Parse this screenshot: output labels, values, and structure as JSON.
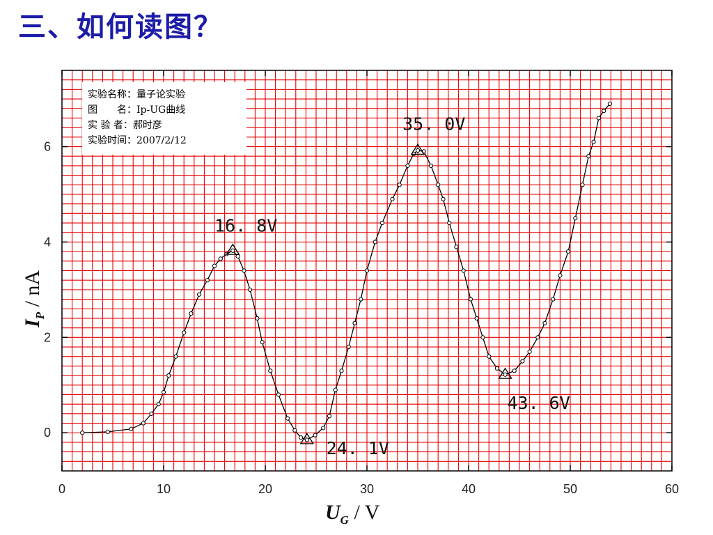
{
  "slide": {
    "title": "三、如何读图？"
  },
  "chart_data": {
    "type": "line",
    "grid": true,
    "grid_color": "#e60000",
    "line_color": "#000000",
    "title_color": "#1c1ca8",
    "xlabel": {
      "symbol": "U",
      "subscript": "G",
      "unit": "/ V"
    },
    "ylabel": {
      "symbol": "I",
      "subscript": "P",
      "unit": "/ nA"
    },
    "xlim": [
      0,
      60
    ],
    "ylim": [
      -0.8,
      7.6
    ],
    "xticks": [
      0,
      10,
      20,
      30,
      40,
      50,
      60
    ],
    "yticks": [
      0,
      2,
      4,
      6
    ],
    "info_box": {
      "lines": [
        "实验名称：量子论实验",
        "图　　名：Ip-UG曲线",
        "实 验 者：郝时彦",
        "实验时间：2007/2/12"
      ]
    },
    "series": [
      {
        "points": [
          [
            2.0,
            0.0
          ],
          [
            4.5,
            0.02
          ],
          [
            6.8,
            0.08
          ],
          [
            8.0,
            0.2
          ],
          [
            8.8,
            0.4
          ],
          [
            9.5,
            0.6
          ],
          [
            10.0,
            0.85
          ],
          [
            10.5,
            1.2
          ],
          [
            11.2,
            1.6
          ],
          [
            12.0,
            2.1
          ],
          [
            12.7,
            2.5
          ],
          [
            13.5,
            2.9
          ],
          [
            14.3,
            3.2
          ],
          [
            15.0,
            3.5
          ],
          [
            15.6,
            3.65
          ],
          [
            16.2,
            3.75
          ],
          [
            16.8,
            3.82
          ],
          [
            17.3,
            3.7
          ],
          [
            17.9,
            3.4
          ],
          [
            18.5,
            3.0
          ],
          [
            19.2,
            2.4
          ],
          [
            19.7,
            1.9
          ],
          [
            20.5,
            1.3
          ],
          [
            21.3,
            0.8
          ],
          [
            22.2,
            0.3
          ],
          [
            22.9,
            0.05
          ],
          [
            23.5,
            -0.1
          ],
          [
            24.1,
            -0.15
          ],
          [
            24.9,
            -0.05
          ],
          [
            25.7,
            0.1
          ],
          [
            26.3,
            0.35
          ],
          [
            26.9,
            0.9
          ],
          [
            27.5,
            1.3
          ],
          [
            28.2,
            1.8
          ],
          [
            28.8,
            2.3
          ],
          [
            29.4,
            2.8
          ],
          [
            30.0,
            3.4
          ],
          [
            30.8,
            4.0
          ],
          [
            31.5,
            4.4
          ],
          [
            32.5,
            4.9
          ],
          [
            33.2,
            5.2
          ],
          [
            34.0,
            5.6
          ],
          [
            34.6,
            5.85
          ],
          [
            35.0,
            5.92
          ],
          [
            35.6,
            5.9
          ],
          [
            36.3,
            5.6
          ],
          [
            37.0,
            5.2
          ],
          [
            37.5,
            4.9
          ],
          [
            38.1,
            4.4
          ],
          [
            38.8,
            3.9
          ],
          [
            39.5,
            3.4
          ],
          [
            40.2,
            2.8
          ],
          [
            40.8,
            2.4
          ],
          [
            41.4,
            2.0
          ],
          [
            42.0,
            1.6
          ],
          [
            42.8,
            1.35
          ],
          [
            43.6,
            1.22
          ],
          [
            44.5,
            1.3
          ],
          [
            45.3,
            1.5
          ],
          [
            46.0,
            1.7
          ],
          [
            46.8,
            2.0
          ],
          [
            47.5,
            2.3
          ],
          [
            48.3,
            2.8
          ],
          [
            49.0,
            3.3
          ],
          [
            49.8,
            3.8
          ],
          [
            50.5,
            4.5
          ],
          [
            51.2,
            5.2
          ],
          [
            51.8,
            5.8
          ],
          [
            52.3,
            6.1
          ],
          [
            52.8,
            6.6
          ],
          [
            53.3,
            6.75
          ],
          [
            53.9,
            6.9
          ]
        ]
      }
    ],
    "annotations": [
      {
        "label": "16. 8V",
        "x": 16.8,
        "y": 3.82,
        "text_x": 15.0,
        "text_y": 4.22
      },
      {
        "label": "24. 1V",
        "x": 24.1,
        "y": -0.15,
        "text_x": 26.0,
        "text_y": -0.45
      },
      {
        "label": "35. 0V",
        "x": 35.0,
        "y": 5.92,
        "text_x": 33.5,
        "text_y": 6.35
      },
      {
        "label": "43. 6V",
        "x": 43.6,
        "y": 1.22,
        "text_x": 43.8,
        "text_y": 0.5
      }
    ]
  }
}
